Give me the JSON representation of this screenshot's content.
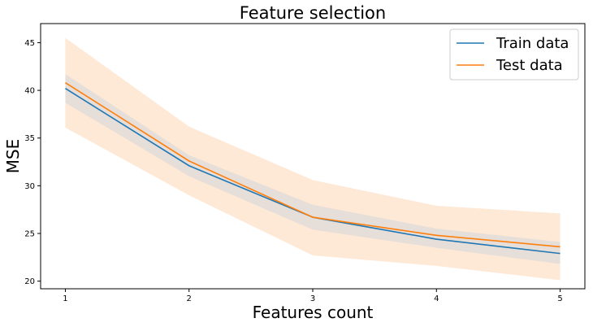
{
  "chart_data": {
    "type": "line",
    "title": "Feature selection",
    "xlabel": "Features count",
    "ylabel": "MSE",
    "x": [
      1,
      2,
      3,
      4,
      5
    ],
    "x_ticks": [
      "1",
      "2",
      "3",
      "4",
      "5"
    ],
    "y_ticks": [
      "20",
      "25",
      "30",
      "35",
      "40",
      "45"
    ],
    "xlim": [
      0.8,
      5.2
    ],
    "ylim": [
      19.2,
      47.0
    ],
    "grid": false,
    "legend_position": "top-right",
    "series": [
      {
        "name": "Train data",
        "color": "#1f77b4",
        "values": [
          40.2,
          32.1,
          26.7,
          24.4,
          22.9
        ],
        "band_lower": [
          38.7,
          31.0,
          25.4,
          23.5,
          21.8
        ],
        "band_upper": [
          41.7,
          33.2,
          28.0,
          25.5,
          24.1
        ],
        "band_color": "#d9d9d9"
      },
      {
        "name": "Test data",
        "color": "#ff7f0e",
        "values": [
          40.8,
          32.6,
          26.7,
          24.8,
          23.6
        ],
        "band_lower": [
          36.1,
          29.0,
          22.7,
          21.6,
          20.1
        ],
        "band_upper": [
          45.5,
          36.2,
          30.6,
          27.9,
          27.1
        ],
        "band_color": "#fde0c8"
      }
    ]
  }
}
